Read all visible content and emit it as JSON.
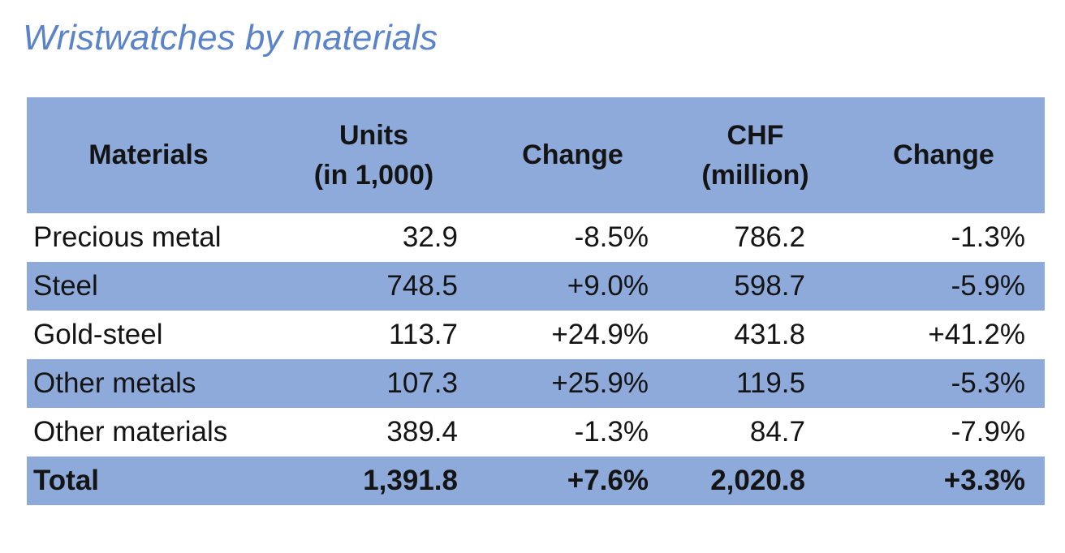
{
  "title": {
    "text": "Wristwatches by materials",
    "color": "#5B83C9"
  },
  "colors": {
    "band_blue": "#8EAADB",
    "row_white": "#ffffff",
    "text": "#141414"
  },
  "table": {
    "headers": {
      "materials": "Materials",
      "units": "Units\n(in 1,000)",
      "units_change": "Change",
      "chf": "CHF\n(million)",
      "chf_change": "Change"
    },
    "rows": [
      {
        "material": "Precious metal",
        "units": "32.9",
        "units_change": "-8.5%",
        "chf": "786.2",
        "chf_change": "-1.3%"
      },
      {
        "material": "Steel",
        "units": "748.5",
        "units_change": "+9.0%",
        "chf": "598.7",
        "chf_change": "-5.9%"
      },
      {
        "material": "Gold-steel",
        "units": "113.7",
        "units_change": "+24.9%",
        "chf": "431.8",
        "chf_change": "+41.2%"
      },
      {
        "material": "Other metals",
        "units": "107.3",
        "units_change": "+25.9%",
        "chf": "119.5",
        "chf_change": "-5.3%"
      },
      {
        "material": "Other materials",
        "units": "389.4",
        "units_change": "-1.3%",
        "chf": "84.7",
        "chf_change": "-7.9%"
      },
      {
        "material": "Total",
        "units": "1,391.8",
        "units_change": "+7.6%",
        "chf": "2,020.8",
        "chf_change": "+3.3%"
      }
    ]
  },
  "chart_data": {
    "type": "table",
    "title": "Wristwatches by materials",
    "columns": [
      "Materials",
      "Units (in 1,000)",
      "Change",
      "CHF (million)",
      "Change"
    ],
    "rows": [
      [
        "Precious metal",
        32.9,
        "-8.5%",
        786.2,
        "-1.3%"
      ],
      [
        "Steel",
        748.5,
        "+9.0%",
        598.7,
        "-5.9%"
      ],
      [
        "Gold-steel",
        113.7,
        "+24.9%",
        431.8,
        "+41.2%"
      ],
      [
        "Other metals",
        107.3,
        "+25.9%",
        119.5,
        "-5.3%"
      ],
      [
        "Other materials",
        389.4,
        "-1.3%",
        84.7,
        "-7.9%"
      ],
      [
        "Total",
        1391.8,
        "+7.6%",
        2020.8,
        "+3.3%"
      ]
    ],
    "layout_hints": {
      "header_fill": "#8EAADB",
      "banded_rows": true,
      "band_fill": "#8EAADB",
      "total_row_bold": true,
      "numeric_alignment": "right"
    }
  }
}
